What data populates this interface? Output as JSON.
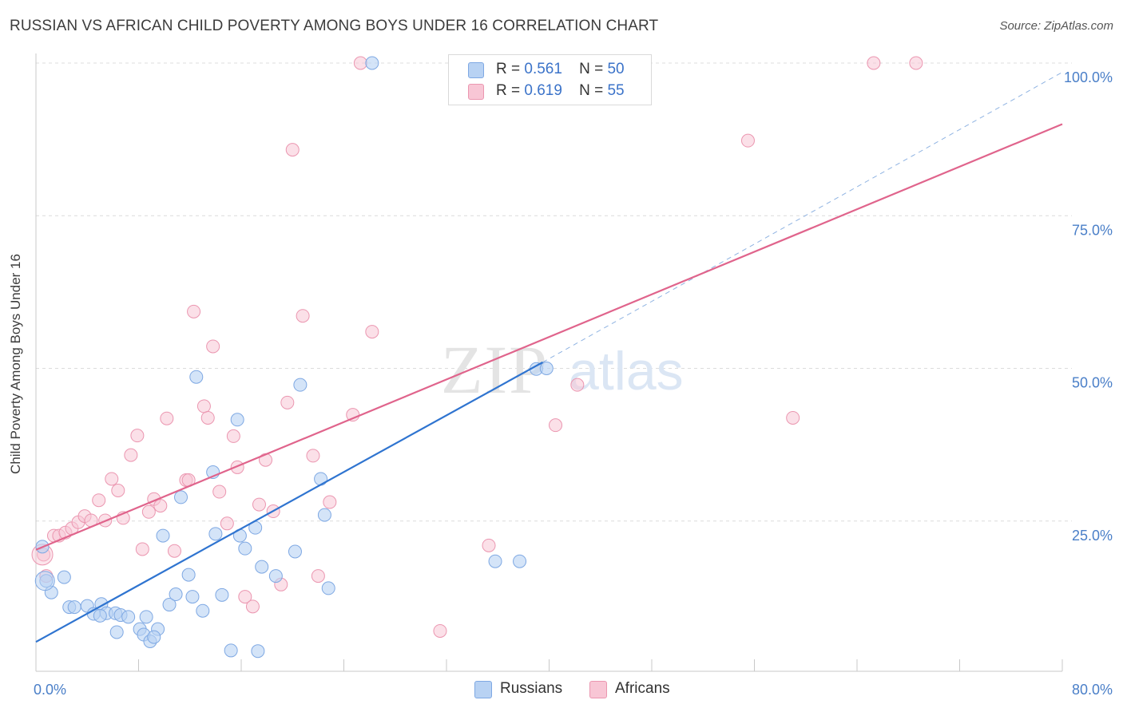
{
  "header": {
    "title": "RUSSIAN VS AFRICAN CHILD POVERTY AMONG BOYS UNDER 16 CORRELATION CHART",
    "source": "Source: ZipAtlas.com"
  },
  "watermark": {
    "zip": "ZIP",
    "atlas": "atlas"
  },
  "legend_top": {
    "rows": [
      {
        "r_label": "R =",
        "r_value": "0.561",
        "n_label": "N =",
        "n_value": "50"
      },
      {
        "r_label": "R =",
        "r_value": "0.619",
        "n_label": "N =",
        "n_value": "55"
      }
    ]
  },
  "legend_bottom": {
    "russians": "Russians",
    "africans": "Africans"
  },
  "colors": {
    "russians_fill": "#b8d2f3",
    "russians_stroke": "#7ea8e3",
    "russians_line": "#2f74d0",
    "africans_fill": "#f8c6d5",
    "africans_stroke": "#eb96b0",
    "africans_line": "#e0648c",
    "axis_tick_label": "#4a7fc8",
    "grid": "#dcdcdc"
  },
  "chart_data": {
    "type": "scatter",
    "title": "RUSSIAN VS AFRICAN CHILD POVERTY AMONG BOYS UNDER 16 CORRELATION CHART",
    "xlabel": "",
    "ylabel": "Child Poverty Among Boys Under 16",
    "xlim": [
      0,
      80
    ],
    "ylim": [
      0,
      105
    ],
    "x_tick_labels": [
      "0.0%",
      "80.0%"
    ],
    "y_ticks": [
      25,
      50,
      75,
      100
    ],
    "y_tick_labels": [
      "25.0%",
      "50.0%",
      "75.0%",
      "100.0%"
    ],
    "grid": true,
    "legend_placement": "top-center",
    "series": [
      {
        "name": "Russians",
        "r": 0.561,
        "n": 50,
        "trend": {
          "x": [
            0,
            39.5
          ],
          "y": [
            5.2,
            51.0
          ]
        },
        "trend_extension": {
          "x": [
            39.5,
            80
          ],
          "y": [
            51.0,
            98.5
          ]
        },
        "points": [
          [
            0.5,
            20.8
          ],
          [
            0.8,
            15.2
          ],
          [
            1.2,
            13.3
          ],
          [
            2.2,
            15.8
          ],
          [
            2.6,
            10.9
          ],
          [
            3.0,
            10.9
          ],
          [
            4.0,
            11.1
          ],
          [
            4.5,
            9.8
          ],
          [
            5.1,
            11.4
          ],
          [
            5.5,
            9.9
          ],
          [
            6.2,
            9.9
          ],
          [
            6.6,
            9.6
          ],
          [
            6.3,
            6.8
          ],
          [
            7.2,
            9.3
          ],
          [
            8.1,
            7.3
          ],
          [
            8.4,
            6.4
          ],
          [
            8.6,
            9.3
          ],
          [
            8.9,
            5.3
          ],
          [
            9.5,
            7.3
          ],
          [
            9.9,
            22.6
          ],
          [
            10.4,
            11.3
          ],
          [
            10.9,
            13.0
          ],
          [
            11.3,
            28.9
          ],
          [
            11.9,
            16.2
          ],
          [
            12.2,
            12.6
          ],
          [
            12.5,
            48.6
          ],
          [
            13.0,
            10.3
          ],
          [
            13.8,
            33.0
          ],
          [
            14.0,
            22.9
          ],
          [
            14.5,
            12.9
          ],
          [
            15.2,
            3.8
          ],
          [
            15.7,
            41.6
          ],
          [
            15.9,
            22.6
          ],
          [
            16.3,
            20.5
          ],
          [
            17.1,
            23.9
          ],
          [
            17.3,
            3.7
          ],
          [
            17.6,
            17.5
          ],
          [
            18.7,
            16.0
          ],
          [
            20.2,
            20.0
          ],
          [
            20.6,
            47.3
          ],
          [
            22.2,
            31.9
          ],
          [
            22.5,
            26.0
          ],
          [
            22.8,
            14.0
          ],
          [
            26.2,
            100.0
          ],
          [
            35.8,
            18.4
          ],
          [
            37.7,
            18.4
          ],
          [
            39.0,
            49.9
          ],
          [
            39.8,
            50.0
          ],
          [
            9.2,
            6.0
          ],
          [
            5.0,
            9.5
          ]
        ]
      },
      {
        "name": "Africans",
        "r": 0.619,
        "n": 55,
        "trend": {
          "x": [
            0,
            80
          ],
          "y": [
            20.3,
            90.0
          ]
        },
        "points": [
          [
            0.6,
            19.5
          ],
          [
            0.8,
            16.0
          ],
          [
            1.4,
            22.6
          ],
          [
            1.8,
            22.6
          ],
          [
            2.3,
            23.1
          ],
          [
            2.8,
            23.8
          ],
          [
            3.3,
            24.8
          ],
          [
            3.8,
            25.8
          ],
          [
            4.3,
            25.1
          ],
          [
            4.9,
            28.4
          ],
          [
            5.4,
            25.1
          ],
          [
            5.9,
            31.9
          ],
          [
            6.4,
            30.0
          ],
          [
            6.8,
            25.5
          ],
          [
            7.4,
            35.8
          ],
          [
            7.9,
            39.0
          ],
          [
            8.3,
            20.4
          ],
          [
            8.8,
            26.5
          ],
          [
            9.2,
            28.6
          ],
          [
            9.7,
            27.5
          ],
          [
            10.2,
            41.8
          ],
          [
            10.8,
            20.1
          ],
          [
            11.7,
            31.7
          ],
          [
            11.9,
            31.7
          ],
          [
            12.3,
            59.3
          ],
          [
            13.1,
            43.8
          ],
          [
            13.4,
            41.9
          ],
          [
            13.8,
            53.6
          ],
          [
            14.3,
            29.8
          ],
          [
            14.9,
            24.6
          ],
          [
            15.4,
            38.9
          ],
          [
            15.7,
            33.8
          ],
          [
            16.3,
            12.6
          ],
          [
            16.9,
            11.0
          ],
          [
            17.4,
            27.7
          ],
          [
            17.9,
            35.0
          ],
          [
            18.5,
            26.6
          ],
          [
            19.1,
            14.6
          ],
          [
            19.6,
            44.4
          ],
          [
            20.0,
            85.8
          ],
          [
            20.8,
            58.6
          ],
          [
            21.6,
            35.7
          ],
          [
            22.0,
            16.0
          ],
          [
            22.9,
            28.1
          ],
          [
            24.7,
            42.4
          ],
          [
            25.3,
            100.0
          ],
          [
            26.2,
            56.0
          ],
          [
            31.5,
            7.0
          ],
          [
            35.3,
            21.0
          ],
          [
            40.5,
            40.7
          ],
          [
            42.2,
            47.3
          ],
          [
            55.5,
            87.3
          ],
          [
            59.0,
            41.9
          ],
          [
            65.3,
            100.0
          ],
          [
            68.6,
            100.0
          ]
        ]
      }
    ]
  }
}
